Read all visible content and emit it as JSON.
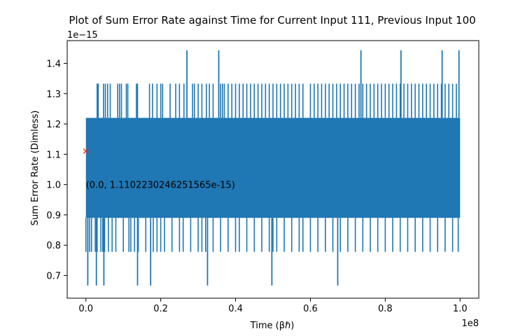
{
  "chart_data": {
    "type": "line",
    "title": "Plot of Sum Error Rate against Time for Current Input 111, Previous Input 100",
    "xlabel": "Time (βℏ)",
    "ylabel": "Sum Error Rate (Dimless)",
    "x_offset_text": "1e8",
    "y_offset_text": "1e−15",
    "xlim": [
      -0.05,
      1.05
    ],
    "ylim": [
      0.625,
      1.475
    ],
    "x_ticks": [
      0.0,
      0.2,
      0.4,
      0.6,
      0.8,
      1.0
    ],
    "x_tick_labels": [
      "0.0",
      "0.2",
      "0.4",
      "0.6",
      "0.8",
      "1.0"
    ],
    "y_ticks": [
      0.7,
      0.8,
      0.9,
      1.0,
      1.1,
      1.2,
      1.3,
      1.4
    ],
    "y_tick_labels": [
      "0.7",
      "0.8",
      "0.9",
      "1.0",
      "1.1",
      "1.2",
      "1.3",
      "1.4"
    ],
    "grid": false,
    "series": [
      {
        "color": "#1f77b4",
        "x_range": [
          0.0,
          1.0
        ],
        "dense_band": [
          0.89,
          1.22
        ],
        "spikes_high": [
          {
            "x": 0.27,
            "y": 1.443
          },
          {
            "x": 0.355,
            "y": 1.443
          },
          {
            "x": 0.735,
            "y": 1.443
          },
          {
            "x": 0.842,
            "y": 1.443
          },
          {
            "x": 0.952,
            "y": 1.443
          },
          {
            "x": 0.997,
            "y": 1.443
          }
        ],
        "spikes_1_33": [
          0.03,
          0.033,
          0.047,
          0.052,
          0.058,
          0.065,
          0.085,
          0.09,
          0.095,
          0.108,
          0.112,
          0.135,
          0.138,
          0.17,
          0.178,
          0.19,
          0.2,
          0.205,
          0.225,
          0.24,
          0.25,
          0.262,
          0.285,
          0.29,
          0.3,
          0.31,
          0.322,
          0.33,
          0.34,
          0.36,
          0.365,
          0.37,
          0.38,
          0.39,
          0.4,
          0.41,
          0.42,
          0.43,
          0.44,
          0.45,
          0.46,
          0.47,
          0.48,
          0.49,
          0.5,
          0.51,
          0.52,
          0.53,
          0.54,
          0.55,
          0.56,
          0.57,
          0.58,
          0.6,
          0.61,
          0.62,
          0.63,
          0.64,
          0.65,
          0.66,
          0.67,
          0.68,
          0.69,
          0.7,
          0.71,
          0.72,
          0.73,
          0.74,
          0.75,
          0.76,
          0.77,
          0.78,
          0.79,
          0.8,
          0.81,
          0.82,
          0.83,
          0.84,
          0.85,
          0.86,
          0.87,
          0.88,
          0.89,
          0.9,
          0.91,
          0.92,
          0.93,
          0.94,
          0.95,
          0.96,
          0.97,
          0.98,
          0.99
        ],
        "spikes_0_78": [
          0.0,
          0.005,
          0.01,
          0.015,
          0.025,
          0.03,
          0.04,
          0.045,
          0.05,
          0.06,
          0.07,
          0.08,
          0.1,
          0.115,
          0.12,
          0.13,
          0.14,
          0.16,
          0.18,
          0.19,
          0.2,
          0.21,
          0.23,
          0.25,
          0.26,
          0.28,
          0.3,
          0.31,
          0.32,
          0.34,
          0.36,
          0.38,
          0.4,
          0.41,
          0.43,
          0.45,
          0.47,
          0.49,
          0.5,
          0.51,
          0.53,
          0.55,
          0.57,
          0.58,
          0.6,
          0.62,
          0.64,
          0.66,
          0.68,
          0.7,
          0.72,
          0.74,
          0.76,
          0.78,
          0.8,
          0.82,
          0.84,
          0.86,
          0.88,
          0.9,
          0.92,
          0.94,
          0.96,
          0.98,
          0.995
        ],
        "spikes_low": [
          {
            "x": 0.005,
            "y": 0.667
          },
          {
            "x": 0.028,
            "y": 0.667
          },
          {
            "x": 0.048,
            "y": 0.667
          },
          {
            "x": 0.138,
            "y": 0.667
          },
          {
            "x": 0.173,
            "y": 0.667
          },
          {
            "x": 0.325,
            "y": 0.667
          },
          {
            "x": 0.497,
            "y": 0.667
          },
          {
            "x": 0.673,
            "y": 0.667
          }
        ]
      }
    ],
    "marker": {
      "x": 0.0,
      "y": 1.1102230246251565,
      "symbol": "x",
      "color": "#d62728"
    },
    "annotation": {
      "text": "(0.0, 1.1102230246251565e-15)",
      "x": 0.0,
      "y": 1.0
    }
  }
}
